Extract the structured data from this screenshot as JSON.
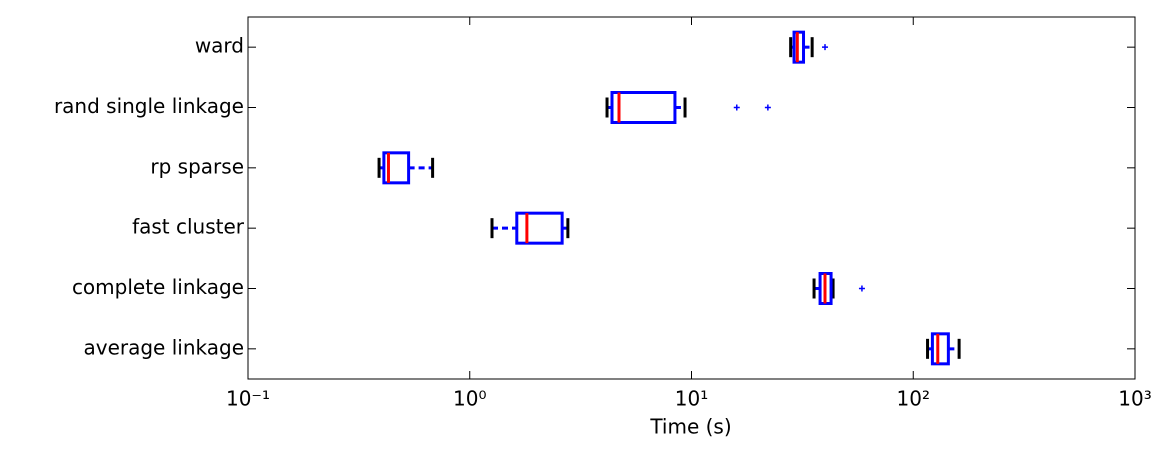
{
  "chart_data": {
    "type": "boxplot",
    "orientation": "horizontal",
    "xlabel": "Time (s)",
    "categories": [
      "ward",
      "rand single linkage",
      "rp sparse",
      "fast cluster",
      "complete linkage",
      "average linkage"
    ],
    "boxes": [
      {
        "whislo": 28,
        "q1": 29,
        "med": 30,
        "q3": 32,
        "whishi": 35,
        "fliers": [
          40
        ]
      },
      {
        "whislo": 4.16,
        "q1": 4.38,
        "med": 4.71,
        "q3": 8.42,
        "whishi": 9.35,
        "fliers": [
          16,
          22.1
        ]
      },
      {
        "whislo": 0.39,
        "q1": 0.41,
        "med": 0.43,
        "q3": 0.53,
        "whishi": 0.68,
        "fliers": []
      },
      {
        "whislo": 1.26,
        "q1": 1.63,
        "med": 1.81,
        "q3": 2.61,
        "whishi": 2.77,
        "fliers": []
      },
      {
        "whislo": 35.7,
        "q1": 38,
        "med": 40,
        "q3": 42.6,
        "whishi": 43.5,
        "fliers": [
          58.7
        ]
      },
      {
        "whislo": 116,
        "q1": 122,
        "med": 129,
        "q3": 144,
        "whishi": 161,
        "fliers": []
      }
    ],
    "xscale": "log",
    "xlim": [
      0.1,
      1000
    ],
    "xticks": [
      {
        "value": 0.1,
        "label": "10⁻¹"
      },
      {
        "value": 1,
        "label": "10⁰"
      },
      {
        "value": 10,
        "label": "10¹"
      },
      {
        "value": 100,
        "label": "10²"
      },
      {
        "value": 1000,
        "label": "10³"
      }
    ],
    "box_color": "#0000ff",
    "median_color": "#ff0000",
    "cap_color": "#000000",
    "flier_color": "#0000ff"
  }
}
